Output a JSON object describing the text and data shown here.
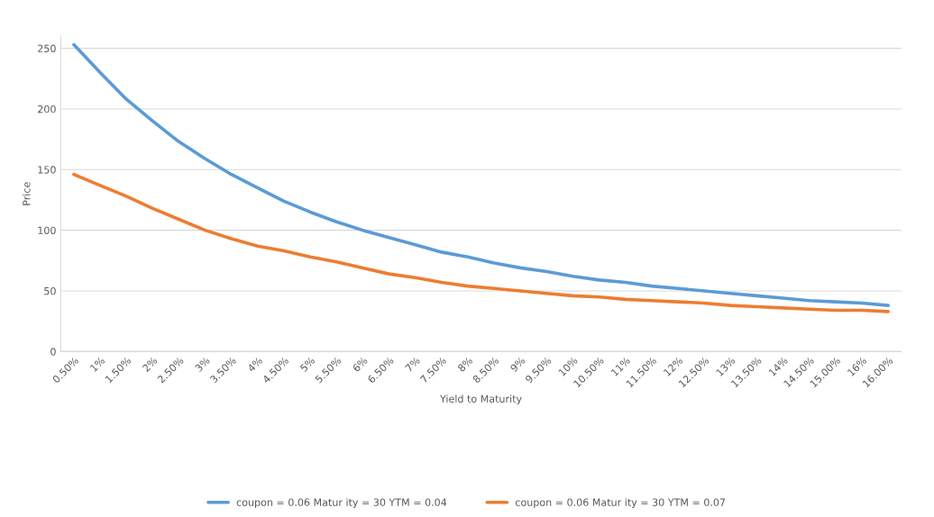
{
  "chart_data": {
    "type": "line",
    "xlabel": "Yield to Maturity",
    "ylabel": "Price",
    "categories": [
      "0.50%",
      "1%",
      "1.50%",
      "2%",
      "2.50%",
      "3%",
      "3.50%",
      "4%",
      "4.50%",
      "5%",
      "5.50%",
      "6%",
      "6.50%",
      "7%",
      "7.50%",
      "8%",
      "8.50%",
      "9%",
      "9.50%",
      "10%",
      "10.50%",
      "11%",
      "11.50%",
      "12%",
      "12.50%",
      "13%",
      "13.50%",
      "14%",
      "14.50%",
      "15.00%",
      "16%",
      "16.00%"
    ],
    "series": [
      {
        "name": "coupon = 0.06 Matur ity = 30 YTM = 0.04",
        "color": "#5b9bd5",
        "values": [
          253,
          230,
          208,
          190,
          173,
          159,
          146,
          135,
          124,
          115,
          107,
          100,
          94,
          88,
          82,
          78,
          73,
          69,
          66,
          62,
          59,
          57,
          54,
          52,
          50,
          48,
          46,
          44,
          42,
          41,
          40,
          38
        ]
      },
      {
        "name": "coupon = 0.06 Matur ity = 30 YTM = 0.07",
        "color": "#ed7d31",
        "values": [
          146,
          137,
          128,
          118,
          109,
          100,
          93,
          87,
          83,
          78,
          74,
          69,
          64,
          61,
          57,
          54,
          52,
          50,
          48,
          46,
          45,
          43,
          42,
          41,
          40,
          38,
          37,
          36,
          35,
          34,
          34,
          33
        ]
      }
    ],
    "ylim": [
      0,
      260
    ],
    "yticks": [
      0,
      50,
      100,
      150,
      200,
      250
    ],
    "grid": "y",
    "legend": "bottom",
    "line_style": "solid",
    "marker": "none"
  }
}
